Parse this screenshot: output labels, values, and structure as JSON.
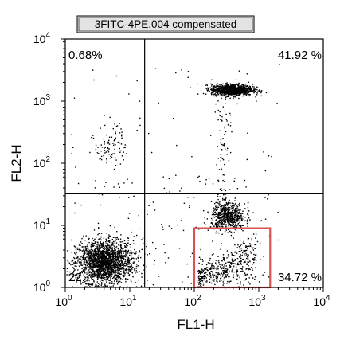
{
  "chart_data": {
    "type": "scatter",
    "title": "3FITC-4PE.004 compensated",
    "xlabel": "FL1-H",
    "ylabel": "FL2-H",
    "x_scale": "log",
    "y_scale": "log",
    "xlim": [
      1,
      10000
    ],
    "ylim": [
      1,
      10000
    ],
    "x_ticks": [
      {
        "value": 1,
        "base": "10",
        "exp": "0"
      },
      {
        "value": 10,
        "base": "10",
        "exp": "1"
      },
      {
        "value": 100,
        "base": "10",
        "exp": "2"
      },
      {
        "value": 1000,
        "base": "10",
        "exp": "3"
      },
      {
        "value": 10000,
        "base": "10",
        "exp": "4"
      }
    ],
    "y_ticks": [
      {
        "value": 1,
        "base": "10",
        "exp": "0"
      },
      {
        "value": 10,
        "base": "10",
        "exp": "1"
      },
      {
        "value": 100,
        "base": "10",
        "exp": "2"
      },
      {
        "value": 1000,
        "base": "10",
        "exp": "3"
      },
      {
        "value": 10000,
        "base": "10",
        "exp": "4"
      }
    ],
    "quadrant_gate": {
      "x": 17,
      "y": 33
    },
    "quadrant_labels": {
      "upper_left": "0.68%",
      "upper_right": "41.92 %",
      "lower_left": "22.",
      "lower_right": "34.72 %"
    },
    "gate_rectangle": {
      "x_range": [
        100,
        1500
      ],
      "y_range": [
        1,
        9
      ],
      "color": "#d9534f"
    },
    "populations": [
      {
        "region": "lower-left",
        "x_center": 4,
        "y_center": 2.6,
        "approx_points": 2000
      },
      {
        "region": "upper-right",
        "x_center": 380,
        "y_center": 1550,
        "approx_points": 1100
      },
      {
        "region": "lower-right",
        "x_center": 330,
        "y_center": 14,
        "approx_points": 600
      },
      {
        "region": "lower-right-gated",
        "x_center": 300,
        "y_center": 3,
        "approx_points": 450
      },
      {
        "region": "upper-left",
        "x_center": 5,
        "y_center": 200,
        "approx_points": 90
      }
    ],
    "grid": false,
    "legend": "none"
  }
}
